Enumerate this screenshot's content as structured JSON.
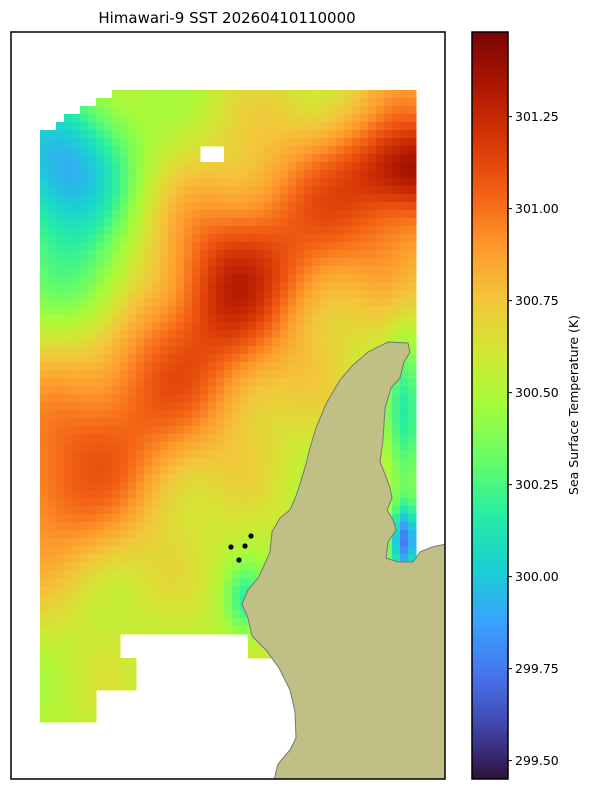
{
  "chart_data": {
    "type": "heatmap",
    "title": "Himawari-9 SST 20260410110000",
    "colorbar": {
      "label": "Sea Surface Temperature (K)",
      "range": [
        299.45,
        301.48
      ],
      "ticks": [
        "299.50",
        "299.75",
        "300.00",
        "300.25",
        "300.50",
        "300.75",
        "301.00",
        "301.25"
      ],
      "tick_values": [
        299.5,
        299.75,
        300.0,
        300.25,
        300.5,
        300.75,
        301.0,
        301.25
      ],
      "colormap": "turbo"
    },
    "land_color": "#bfbf86",
    "grid": "off",
    "axes_ticks": "none",
    "field_summary": [
      {
        "region": "north-west",
        "sst": 300.05
      },
      {
        "region": "north-east",
        "sst": 301.4
      },
      {
        "region": "centre",
        "sst": 301.05
      },
      {
        "region": "south-west",
        "sst": 300.65
      },
      {
        "region": "near-coast",
        "sst": 300.2
      }
    ],
    "markers": {
      "count": 4,
      "color": "#000000"
    }
  }
}
